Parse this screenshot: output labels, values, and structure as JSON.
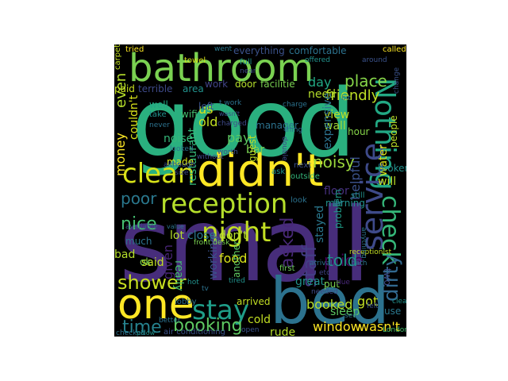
{
  "wordcloud": {
    "background": "#000000",
    "words": [
      {
        "id": "good",
        "text": "good",
        "color": "#2ab07f"
      },
      {
        "id": "small",
        "text": "small",
        "color": "#472d7b"
      },
      {
        "id": "bed",
        "text": "bed",
        "color": "#2c728e"
      },
      {
        "id": "bathroom",
        "text": "bathroom",
        "color": "#7ad151"
      },
      {
        "id": "didnt",
        "text": "didn't",
        "color": "#fde725"
      },
      {
        "id": "reception",
        "text": "reception",
        "color": "#b5de2b"
      },
      {
        "id": "one",
        "text": "one",
        "color": "#fde725"
      },
      {
        "id": "nothing",
        "text": "Nothing",
        "color": "#22a884"
      },
      {
        "id": "service",
        "text": "service",
        "color": "#3e4a89"
      },
      {
        "id": "clean",
        "text": "clean",
        "color": "#d8e219"
      },
      {
        "id": "night",
        "text": "night",
        "color": "#c2df23"
      },
      {
        "id": "stay",
        "text": "stay",
        "color": "#1f9e89"
      },
      {
        "id": "shower",
        "text": "shower",
        "color": "#c8e020"
      },
      {
        "id": "check",
        "text": "check",
        "color": "#35b779"
      },
      {
        "id": "dirty",
        "text": "dirty",
        "color": "#31688e"
      },
      {
        "id": "booking",
        "text": "booking",
        "color": "#5ec962"
      },
      {
        "id": "time",
        "text": "time",
        "color": "#26828e"
      },
      {
        "id": "staff",
        "text": "staff",
        "color": "#433e85"
      },
      {
        "id": "asked",
        "text": "asked",
        "color": "#482878"
      },
      {
        "id": "price",
        "text": "price",
        "color": "#440154"
      },
      {
        "id": "told",
        "text": "told",
        "color": "#1f968b"
      },
      {
        "id": "friendly",
        "text": "friendly",
        "color": "#bddf26"
      },
      {
        "id": "place",
        "text": "place",
        "color": "#86d549"
      },
      {
        "id": "nice",
        "text": "nice",
        "color": "#44bf70"
      },
      {
        "id": "poor",
        "text": "poor",
        "color": "#2a788e"
      },
      {
        "id": "restaurant",
        "text": "restaurant",
        "color": "#35b779"
      },
      {
        "id": "money",
        "text": "money",
        "color": "#fde725"
      },
      {
        "id": "even",
        "text": "even",
        "color": "#b5de2b"
      },
      {
        "id": "couldnt",
        "text": "couldn't",
        "color": "#d8e219"
      },
      {
        "id": "noisy",
        "text": "noisy",
        "color": "#9bd93c"
      },
      {
        "id": "bar",
        "text": "bar",
        "color": "#7ad151"
      },
      {
        "id": "pay",
        "text": "pay",
        "color": "#5ec962"
      },
      {
        "id": "close",
        "text": "close",
        "color": "#2a788e"
      },
      {
        "id": "dont",
        "text": "don't",
        "color": "#b5de2b"
      },
      {
        "id": "food",
        "text": "food",
        "color": "#d8e219"
      },
      {
        "id": "booked",
        "text": "booked",
        "color": "#b5de2b"
      },
      {
        "id": "got",
        "text": "got",
        "color": "#c2df23"
      },
      {
        "id": "great",
        "text": "great",
        "color": "#21918c"
      },
      {
        "id": "window",
        "text": "window",
        "color": "#fde725"
      },
      {
        "id": "wasnt",
        "text": "wasn't",
        "color": "#fde725"
      },
      {
        "id": "rude",
        "text": "rude",
        "color": "#b5de2b"
      },
      {
        "id": "cold",
        "text": "cold",
        "color": "#c2df23"
      },
      {
        "id": "view",
        "text": "view",
        "color": "#bddf26"
      },
      {
        "id": "wall",
        "text": "wall",
        "color": "#a2da37"
      },
      {
        "id": "hour",
        "text": "hour",
        "color": "#86d549"
      },
      {
        "id": "day",
        "text": "day",
        "color": "#22a884"
      },
      {
        "id": "need",
        "text": "need",
        "color": "#b5de2b"
      },
      {
        "id": "us",
        "text": "us",
        "color": "#d8e219"
      },
      {
        "id": "old",
        "text": "old",
        "color": "#c2df23"
      },
      {
        "id": "left",
        "text": "left",
        "color": "#3b528b"
      },
      {
        "id": "noise",
        "text": "noise",
        "color": "#35b779"
      },
      {
        "id": "wifi",
        "text": "wifi",
        "color": "#44bf70"
      },
      {
        "id": "well",
        "text": "well",
        "color": "#22a884"
      },
      {
        "id": "paid",
        "text": "paid",
        "color": "#c8e020"
      },
      {
        "id": "door",
        "text": "door",
        "color": "#b5de2b"
      },
      {
        "id": "facilitie",
        "text": "facilitie",
        "color": "#7ad151"
      },
      {
        "id": "work",
        "text": "work",
        "color": "#414487"
      },
      {
        "id": "terrible",
        "text": "terrible",
        "color": "#3e4a89"
      },
      {
        "id": "area",
        "text": "area",
        "color": "#21918c"
      },
      {
        "id": "everything",
        "text": "everything",
        "color": "#3b528b"
      },
      {
        "id": "comfortable",
        "text": "comfortable",
        "color": "#2c728e"
      },
      {
        "id": "water",
        "text": "water",
        "color": "#d8e219"
      },
      {
        "id": "people",
        "text": "people",
        "color": "#bddf26"
      },
      {
        "id": "broken",
        "text": "broken",
        "color": "#21918c"
      },
      {
        "id": "will",
        "text": "will",
        "color": "#bddf26"
      },
      {
        "id": "expensive",
        "text": "expensive",
        "color": "#2c728e"
      },
      {
        "id": "helpful",
        "text": "helpful",
        "color": "#3b528b"
      },
      {
        "id": "stayed",
        "text": "stayed",
        "color": "#2a788e"
      },
      {
        "id": "floor",
        "text": "floor",
        "color": "#46307e"
      },
      {
        "id": "made",
        "text": "made",
        "color": "#d8e219"
      },
      {
        "id": "lot",
        "text": "lot",
        "color": "#b5de2b"
      },
      {
        "id": "said",
        "text": "said",
        "color": "#c2df23"
      },
      {
        "id": "given",
        "text": "given",
        "color": "#482475"
      },
      {
        "id": "really",
        "text": "really",
        "color": "#44bf70"
      },
      {
        "id": "working",
        "text": "working",
        "color": "#3b528b"
      },
      {
        "id": "bad",
        "text": "bad",
        "color": "#b5de2b"
      },
      {
        "id": "ok",
        "text": "ok",
        "color": "#7ad151"
      },
      {
        "id": "arrived",
        "text": "arrived",
        "color": "#c2df23"
      },
      {
        "id": "put",
        "text": "put",
        "color": "#7ad151"
      },
      {
        "id": "first",
        "text": "first",
        "color": "#6ccd5a"
      },
      {
        "id": "sleep",
        "text": "sleep",
        "color": "#5ec962"
      },
      {
        "id": "use",
        "text": "use",
        "color": "#2a788e"
      },
      {
        "id": "two",
        "text": "two",
        "color": "#3e4a89"
      },
      {
        "id": "much",
        "text": "much",
        "color": "#2c728e"
      },
      {
        "id": "carpet",
        "text": "carpet",
        "color": "#c2df23"
      },
      {
        "id": "towel",
        "text": "towel",
        "color": "#d8e219"
      },
      {
        "id": "guest",
        "text": "guest",
        "color": "#c2df23"
      },
      {
        "id": "manager",
        "text": "manager",
        "color": "#2c728e"
      },
      {
        "id": "another",
        "text": "another",
        "color": "#5ec962"
      },
      {
        "id": "tried",
        "text": "tried",
        "color": "#fde725"
      },
      {
        "id": "called",
        "text": "called",
        "color": "#fde725"
      },
      {
        "id": "went",
        "text": "went",
        "color": "#2a788e"
      },
      {
        "id": "around",
        "text": "around",
        "color": "#3b528b"
      },
      {
        "id": "full",
        "text": "full",
        "color": "#21918c"
      },
      {
        "id": "near",
        "text": "near",
        "color": "#3e4a89"
      },
      {
        "id": "charge",
        "text": "charge",
        "color": "#2c728e"
      },
      {
        "id": "morning",
        "text": "morning",
        "color": "#21918c"
      },
      {
        "id": "problem",
        "text": "problem",
        "color": "#1f9e89"
      },
      {
        "id": "receptionist",
        "text": "receptionist",
        "color": "#c2df23"
      },
      {
        "id": "lobby",
        "text": "lobby",
        "color": "#2c728e"
      },
      {
        "id": "air_conditioning",
        "text": "air conditioning",
        "color": "#3b528b"
      },
      {
        "id": "london",
        "text": "London",
        "color": "#44bf70"
      },
      {
        "id": "checked",
        "text": "checked",
        "color": "#2c728e"
      },
      {
        "id": "front_desk",
        "text": "front desk",
        "color": "#7ad151"
      },
      {
        "id": "ask",
        "text": "ask",
        "color": "#21918c"
      },
      {
        "id": "outside",
        "text": "outside",
        "color": "#35b779"
      },
      {
        "id": "next",
        "text": "next",
        "color": "#3b528b"
      },
      {
        "id": "look",
        "text": "look",
        "color": "#2c728e"
      },
      {
        "id": "bath",
        "text": "bath",
        "color": "#2c728e"
      },
      {
        "id": "available",
        "text": "available",
        "color": "#3b528b"
      },
      {
        "id": "better",
        "text": "better",
        "color": "#2c728e"
      },
      {
        "id": "tired",
        "text": "tired",
        "color": "#21918c"
      },
      {
        "id": "felt",
        "text": "felt",
        "color": "#3b528b"
      },
      {
        "id": "far",
        "text": "far",
        "color": "#2c728e"
      },
      {
        "id": "still",
        "text": "still",
        "color": "#21918c"
      },
      {
        "id": "etc",
        "text": "etc",
        "color": "#414487"
      },
      {
        "id": "due",
        "text": "due",
        "color": "#482878"
      },
      {
        "id": "see",
        "text": "see",
        "color": "#2c728e"
      },
      {
        "id": "hot",
        "text": "hot",
        "color": "#21918c"
      },
      {
        "id": "tv",
        "text": "tv",
        "color": "#2c728e"
      },
      {
        "id": "open",
        "text": "open",
        "color": "#3b528b"
      },
      {
        "id": "size",
        "text": "size",
        "color": "#3e4a89"
      },
      {
        "id": "thing",
        "text": "thing",
        "color": "#2c728e"
      },
      {
        "id": "worth",
        "text": "worth",
        "color": "#3b528b"
      },
      {
        "id": "without",
        "text": "without",
        "color": "#3e4a89"
      },
      {
        "id": "take",
        "text": "take",
        "color": "#21918c"
      },
      {
        "id": "never",
        "text": "never",
        "color": "#2c728e"
      },
      {
        "id": "although",
        "text": "although",
        "color": "#3b528b"
      },
      {
        "id": "looked",
        "text": "looked",
        "color": "#2c728e"
      },
      {
        "id": "offered",
        "text": "offered",
        "color": "#21918c"
      },
      {
        "id": "charged",
        "text": "charged",
        "color": "#3e4a89"
      },
      {
        "id": "arrival",
        "text": "arrival",
        "color": "#2c728e"
      },
      {
        "id": "change",
        "text": "change",
        "color": "#3b528b"
      },
      {
        "id": "cleaning",
        "text": "cleaning",
        "color": "#21918c"
      },
      {
        "id": "needed",
        "text": "needed",
        "color": "#3e4a89"
      },
      {
        "id": "anything",
        "text": "anything",
        "color": "#2c728e"
      },
      {
        "id": "quite",
        "text": "quite",
        "color": "#3b528b"
      },
      {
        "id": "pillow",
        "text": "pillow",
        "color": "#21918c"
      },
      {
        "id": "value",
        "text": "value",
        "color": "#2c728e"
      },
      {
        "id": "double",
        "text": "double",
        "color": "#3e4a89"
      },
      {
        "id": "i_work",
        "text": "t work",
        "color": "#2c728e"
      },
      {
        "id": "wasnt_small",
        "text": "wasn't",
        "color": "#3b528b"
      },
      {
        "id": "bit",
        "text": "bit",
        "color": "#2c728e"
      }
    ]
  }
}
